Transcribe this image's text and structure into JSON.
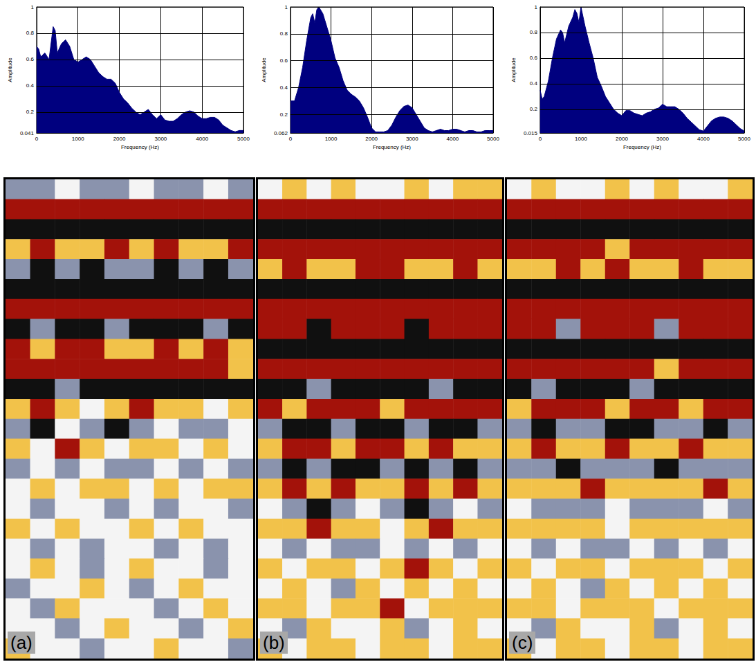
{
  "chart_data": [
    {
      "type": "area",
      "x_label": "Frequency (Hz)",
      "y_label": "Amplitude",
      "color": "#00007f",
      "grid": true,
      "x": [
        0,
        50,
        100,
        200,
        300,
        400,
        450,
        500,
        600,
        700,
        800,
        900,
        1000,
        1100,
        1200,
        1300,
        1400,
        1500,
        1600,
        1700,
        1800,
        1900,
        2000,
        2100,
        2200,
        2300,
        2400,
        2500,
        2600,
        2700,
        2800,
        2900,
        3000,
        3100,
        3200,
        3300,
        3400,
        3500,
        3600,
        3700,
        3800,
        3900,
        4000,
        4100,
        4200,
        4300,
        4400,
        4500,
        4600,
        4700,
        4800,
        4900,
        5000
      ],
      "values": [
        0.7,
        0.68,
        0.62,
        0.65,
        0.6,
        0.85,
        0.82,
        0.65,
        0.72,
        0.75,
        0.7,
        0.6,
        0.58,
        0.6,
        0.62,
        0.6,
        0.55,
        0.5,
        0.47,
        0.45,
        0.45,
        0.42,
        0.35,
        0.3,
        0.27,
        0.23,
        0.2,
        0.18,
        0.2,
        0.22,
        0.18,
        0.15,
        0.18,
        0.14,
        0.13,
        0.13,
        0.15,
        0.18,
        0.2,
        0.21,
        0.2,
        0.17,
        0.15,
        0.15,
        0.16,
        0.16,
        0.14,
        0.1,
        0.08,
        0.06,
        0.05,
        0.06,
        0.06
      ],
      "xlim": [
        0,
        5000
      ],
      "xticks": [
        0,
        1000,
        2000,
        3000,
        4000,
        5000
      ],
      "ylim": [
        0.041,
        1
      ],
      "yticks": [
        0.041,
        0.2,
        0.4,
        0.6,
        0.8,
        1
      ]
    },
    {
      "type": "area",
      "x_label": "Frequency (Hz)",
      "y_label": "Amplitude",
      "color": "#00007f",
      "grid": true,
      "x": [
        0,
        100,
        200,
        300,
        400,
        500,
        550,
        600,
        650,
        700,
        800,
        900,
        1000,
        1100,
        1200,
        1300,
        1400,
        1500,
        1600,
        1700,
        1800,
        1900,
        2000,
        2100,
        2200,
        2300,
        2400,
        2500,
        2600,
        2700,
        2800,
        2900,
        3000,
        3100,
        3200,
        3300,
        3400,
        3500,
        3600,
        3700,
        3800,
        3900,
        4000,
        4100,
        4200,
        4300,
        4400,
        4500,
        4600,
        4700,
        4800,
        4900,
        5000
      ],
      "values": [
        0.3,
        0.3,
        0.4,
        0.55,
        0.75,
        0.92,
        0.95,
        0.88,
        0.98,
        1.0,
        0.95,
        0.85,
        0.75,
        0.62,
        0.55,
        0.45,
        0.38,
        0.35,
        0.33,
        0.3,
        0.25,
        0.18,
        0.1,
        0.07,
        0.07,
        0.07,
        0.08,
        0.12,
        0.18,
        0.23,
        0.26,
        0.27,
        0.25,
        0.2,
        0.15,
        0.1,
        0.08,
        0.07,
        0.08,
        0.09,
        0.08,
        0.08,
        0.09,
        0.09,
        0.08,
        0.07,
        0.08,
        0.08,
        0.07,
        0.07,
        0.08,
        0.08,
        0.08
      ],
      "xlim": [
        0,
        5000
      ],
      "xticks": [
        0,
        1000,
        2000,
        3000,
        4000,
        5000
      ],
      "ylim": [
        0.062,
        1
      ],
      "yticks": [
        0.062,
        0.2,
        0.4,
        0.6,
        0.8,
        1
      ]
    },
    {
      "type": "area",
      "x_label": "Frequency (Hz)",
      "y_label": "Amplitude",
      "color": "#00007f",
      "grid": true,
      "x": [
        0,
        50,
        100,
        200,
        300,
        400,
        500,
        550,
        600,
        700,
        800,
        850,
        900,
        950,
        1000,
        1100,
        1200,
        1300,
        1400,
        1500,
        1600,
        1700,
        1800,
        1900,
        2000,
        2100,
        2200,
        2300,
        2400,
        2500,
        2600,
        2700,
        2800,
        2900,
        3000,
        3100,
        3200,
        3300,
        3400,
        3500,
        3600,
        3700,
        3800,
        3900,
        4000,
        4100,
        4200,
        4300,
        4400,
        4500,
        4600,
        4700,
        4800,
        4900,
        5000
      ],
      "values": [
        0.35,
        0.28,
        0.3,
        0.42,
        0.6,
        0.75,
        0.82,
        0.8,
        0.72,
        0.85,
        0.92,
        0.98,
        0.95,
        0.88,
        1.0,
        0.85,
        0.72,
        0.6,
        0.45,
        0.38,
        0.3,
        0.25,
        0.2,
        0.17,
        0.15,
        0.19,
        0.19,
        0.17,
        0.16,
        0.15,
        0.17,
        0.18,
        0.2,
        0.21,
        0.24,
        0.22,
        0.22,
        0.22,
        0.2,
        0.17,
        0.13,
        0.1,
        0.07,
        0.04,
        0.03,
        0.07,
        0.11,
        0.13,
        0.14,
        0.14,
        0.13,
        0.11,
        0.08,
        0.05,
        0.03
      ],
      "xlim": [
        0,
        5000
      ],
      "xticks": [
        0,
        1000,
        2000,
        3000,
        4000,
        5000
      ],
      "ylim": [
        0.015,
        1
      ],
      "yticks": [
        0.015,
        0.2,
        0.4,
        0.6,
        0.8,
        1
      ]
    },
    {
      "type": "heatmap",
      "title": "(a)",
      "tick_labels": false,
      "value_range": [
        -2,
        2
      ],
      "colors": [
        "#101010",
        "#8a93ad",
        "#f4f4f4",
        "#f2c24a",
        "#a3120a"
      ],
      "cells": [
        [
          -1,
          -1,
          0,
          -1,
          -1,
          0,
          -1,
          -1,
          0,
          -1
        ],
        [
          2,
          2,
          2,
          2,
          2,
          2,
          2,
          2,
          2,
          2
        ],
        [
          -2,
          -2,
          -2,
          -2,
          -2,
          -2,
          -2,
          -2,
          -2,
          -2
        ],
        [
          1,
          2,
          1,
          1,
          2,
          1,
          2,
          1,
          1,
          2
        ],
        [
          -1,
          -2,
          -1,
          -2,
          -1,
          -1,
          -2,
          -1,
          -2,
          -1
        ],
        [
          -2,
          -2,
          -2,
          -2,
          -2,
          -2,
          -2,
          -2,
          -2,
          -2
        ],
        [
          2,
          2,
          2,
          2,
          2,
          2,
          2,
          2,
          2,
          2
        ],
        [
          -2,
          -1,
          -2,
          -2,
          -1,
          -2,
          -2,
          -2,
          -1,
          -2
        ],
        [
          2,
          1,
          2,
          2,
          1,
          1,
          2,
          1,
          2,
          1
        ],
        [
          2,
          2,
          2,
          2,
          2,
          2,
          2,
          2,
          2,
          1
        ],
        [
          -2,
          -2,
          -1,
          -2,
          -2,
          -2,
          -2,
          -2,
          -2,
          -2
        ],
        [
          1,
          2,
          1,
          0,
          1,
          2,
          1,
          1,
          0,
          1
        ],
        [
          -1,
          -2,
          0,
          -1,
          -2,
          -1,
          0,
          -1,
          -1,
          0
        ],
        [
          1,
          0,
          2,
          1,
          0,
          1,
          1,
          0,
          1,
          0
        ],
        [
          -1,
          0,
          -1,
          0,
          -1,
          -1,
          0,
          -1,
          0,
          -1
        ],
        [
          0,
          1,
          0,
          1,
          1,
          0,
          1,
          0,
          1,
          1
        ],
        [
          0,
          -1,
          0,
          0,
          -1,
          0,
          -1,
          0,
          0,
          -1
        ],
        [
          1,
          0,
          1,
          0,
          0,
          1,
          0,
          1,
          0,
          0
        ],
        [
          0,
          -1,
          0,
          -1,
          0,
          0,
          -1,
          0,
          -1,
          0
        ],
        [
          0,
          1,
          0,
          -1,
          0,
          1,
          0,
          0,
          -1,
          0
        ],
        [
          -1,
          0,
          0,
          1,
          0,
          -1,
          0,
          1,
          0,
          0
        ],
        [
          0,
          -1,
          1,
          0,
          0,
          0,
          -1,
          0,
          1,
          0
        ],
        [
          0,
          0,
          -1,
          0,
          1,
          0,
          0,
          -1,
          0,
          1
        ],
        [
          1,
          0,
          0,
          -1,
          0,
          0,
          1,
          0,
          0,
          -1
        ]
      ]
    },
    {
      "type": "heatmap",
      "title": "(b)",
      "tick_labels": false,
      "value_range": [
        -2,
        2
      ],
      "colors": [
        "#101010",
        "#8a93ad",
        "#f4f4f4",
        "#f2c24a",
        "#a3120a"
      ],
      "cells": [
        [
          0,
          1,
          0,
          1,
          0,
          0,
          1,
          0,
          1,
          1
        ],
        [
          2,
          2,
          2,
          2,
          2,
          2,
          2,
          2,
          2,
          2
        ],
        [
          -2,
          -2,
          -2,
          -2,
          -2,
          -2,
          -2,
          -2,
          -2,
          -2
        ],
        [
          2,
          2,
          2,
          2,
          2,
          2,
          2,
          2,
          2,
          2
        ],
        [
          1,
          2,
          1,
          1,
          2,
          2,
          1,
          1,
          2,
          1
        ],
        [
          -2,
          -2,
          -2,
          -2,
          -2,
          -2,
          -2,
          -2,
          -2,
          -2
        ],
        [
          2,
          2,
          2,
          2,
          2,
          2,
          2,
          2,
          2,
          2
        ],
        [
          2,
          2,
          -2,
          2,
          2,
          2,
          -2,
          2,
          2,
          2
        ],
        [
          -2,
          -2,
          -2,
          -2,
          -2,
          -2,
          -2,
          -2,
          -2,
          -2
        ],
        [
          2,
          2,
          2,
          2,
          2,
          2,
          2,
          2,
          2,
          2
        ],
        [
          -2,
          -2,
          -1,
          -2,
          -2,
          -2,
          -2,
          -1,
          -2,
          -2
        ],
        [
          2,
          1,
          2,
          2,
          2,
          1,
          2,
          2,
          2,
          2
        ],
        [
          -1,
          -2,
          -2,
          -1,
          -2,
          -2,
          -1,
          -2,
          -2,
          -1
        ],
        [
          1,
          2,
          2,
          1,
          2,
          2,
          1,
          2,
          1,
          1
        ],
        [
          -1,
          -2,
          -1,
          -2,
          -2,
          -1,
          -2,
          -1,
          -2,
          -1
        ],
        [
          1,
          2,
          1,
          2,
          1,
          1,
          2,
          1,
          2,
          1
        ],
        [
          0,
          -1,
          -2,
          -1,
          0,
          -1,
          -2,
          -1,
          0,
          -1
        ],
        [
          1,
          1,
          2,
          1,
          1,
          0,
          1,
          2,
          1,
          1
        ],
        [
          0,
          -1,
          0,
          -1,
          -1,
          0,
          -1,
          0,
          -1,
          0
        ],
        [
          1,
          0,
          1,
          1,
          0,
          1,
          2,
          1,
          0,
          1
        ],
        [
          0,
          1,
          0,
          -1,
          1,
          0,
          1,
          0,
          1,
          0
        ],
        [
          1,
          1,
          0,
          1,
          1,
          2,
          0,
          1,
          1,
          1
        ],
        [
          0,
          -1,
          1,
          0,
          0,
          1,
          -1,
          0,
          1,
          0
        ],
        [
          1,
          0,
          1,
          1,
          0,
          1,
          1,
          0,
          1,
          1
        ]
      ]
    },
    {
      "type": "heatmap",
      "title": "(c)",
      "tick_labels": false,
      "value_range": [
        -2,
        2
      ],
      "colors": [
        "#101010",
        "#8a93ad",
        "#f4f4f4",
        "#f2c24a",
        "#a3120a"
      ],
      "cells": [
        [
          0,
          1,
          0,
          0,
          1,
          0,
          1,
          0,
          0,
          1
        ],
        [
          2,
          2,
          2,
          2,
          2,
          2,
          2,
          2,
          2,
          2
        ],
        [
          -2,
          -2,
          -2,
          -2,
          -2,
          -2,
          -2,
          -2,
          -2,
          -2
        ],
        [
          2,
          2,
          2,
          2,
          1,
          2,
          2,
          2,
          2,
          2
        ],
        [
          1,
          1,
          2,
          1,
          2,
          1,
          1,
          2,
          1,
          1
        ],
        [
          -2,
          -2,
          -2,
          -2,
          -2,
          -2,
          -2,
          -2,
          -2,
          -2
        ],
        [
          2,
          2,
          2,
          2,
          2,
          2,
          2,
          2,
          2,
          2
        ],
        [
          2,
          2,
          -1,
          2,
          2,
          2,
          -1,
          2,
          2,
          2
        ],
        [
          -2,
          -2,
          -2,
          -2,
          -2,
          -2,
          -2,
          -2,
          -2,
          -2
        ],
        [
          2,
          2,
          2,
          2,
          2,
          2,
          1,
          2,
          2,
          2
        ],
        [
          -2,
          -1,
          -2,
          -2,
          -2,
          -1,
          -2,
          -2,
          -2,
          -2
        ],
        [
          1,
          2,
          2,
          2,
          1,
          2,
          2,
          1,
          2,
          2
        ],
        [
          -1,
          -2,
          -1,
          -1,
          -2,
          -2,
          -1,
          -1,
          -2,
          -1
        ],
        [
          1,
          2,
          1,
          1,
          2,
          1,
          1,
          2,
          1,
          1
        ],
        [
          -1,
          -1,
          -2,
          -1,
          -1,
          -1,
          -2,
          -1,
          -1,
          -1
        ],
        [
          1,
          1,
          1,
          2,
          1,
          1,
          1,
          1,
          2,
          1
        ],
        [
          0,
          -1,
          -1,
          -1,
          0,
          -1,
          -1,
          -1,
          0,
          -1
        ],
        [
          1,
          1,
          1,
          1,
          0,
          1,
          1,
          1,
          1,
          1
        ],
        [
          0,
          -1,
          0,
          -1,
          -1,
          0,
          -1,
          0,
          -1,
          0
        ],
        [
          1,
          0,
          1,
          1,
          0,
          1,
          1,
          1,
          0,
          1
        ],
        [
          0,
          1,
          0,
          -1,
          1,
          0,
          1,
          0,
          1,
          0
        ],
        [
          1,
          1,
          0,
          1,
          1,
          1,
          0,
          1,
          1,
          1
        ],
        [
          0,
          -1,
          1,
          0,
          0,
          1,
          -1,
          0,
          1,
          0
        ],
        [
          1,
          0,
          1,
          1,
          0,
          1,
          1,
          0,
          1,
          1
        ]
      ]
    }
  ]
}
